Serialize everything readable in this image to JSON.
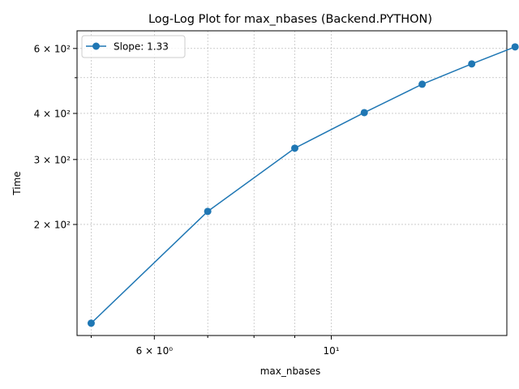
{
  "chart_data": {
    "type": "line",
    "title": "Log-Log Plot for max_nbases (Backend.PYTHON)",
    "xlabel": "max_nbases",
    "ylabel": "Time",
    "xscale": "log",
    "yscale": "log",
    "xlim": [
      4.8,
      16.6
    ],
    "ylim": [
      100,
      670
    ],
    "grid": true,
    "legend_position": "upper-left",
    "series": [
      {
        "name": "Slope: 1.33",
        "color": "#1f77b4",
        "marker": "circle",
        "x": [
          5,
          7,
          9,
          11,
          13,
          15,
          17
        ],
        "y": [
          108,
          217,
          322,
          402,
          480,
          545,
          606
        ]
      }
    ],
    "x_ticks": [
      {
        "value": 6,
        "label": "6 × 10⁰"
      },
      {
        "value": 10,
        "label": "10¹"
      }
    ],
    "y_ticks": [
      {
        "value": 200,
        "label": "2 × 10²"
      },
      {
        "value": 300,
        "label": "3 × 10²"
      },
      {
        "value": 400,
        "label": "4 × 10²"
      },
      {
        "value": 600,
        "label": "6 × 10²"
      }
    ],
    "x_minor_ticks": [
      5,
      7,
      8,
      9
    ],
    "y_minor_ticks": [
      500
    ]
  }
}
